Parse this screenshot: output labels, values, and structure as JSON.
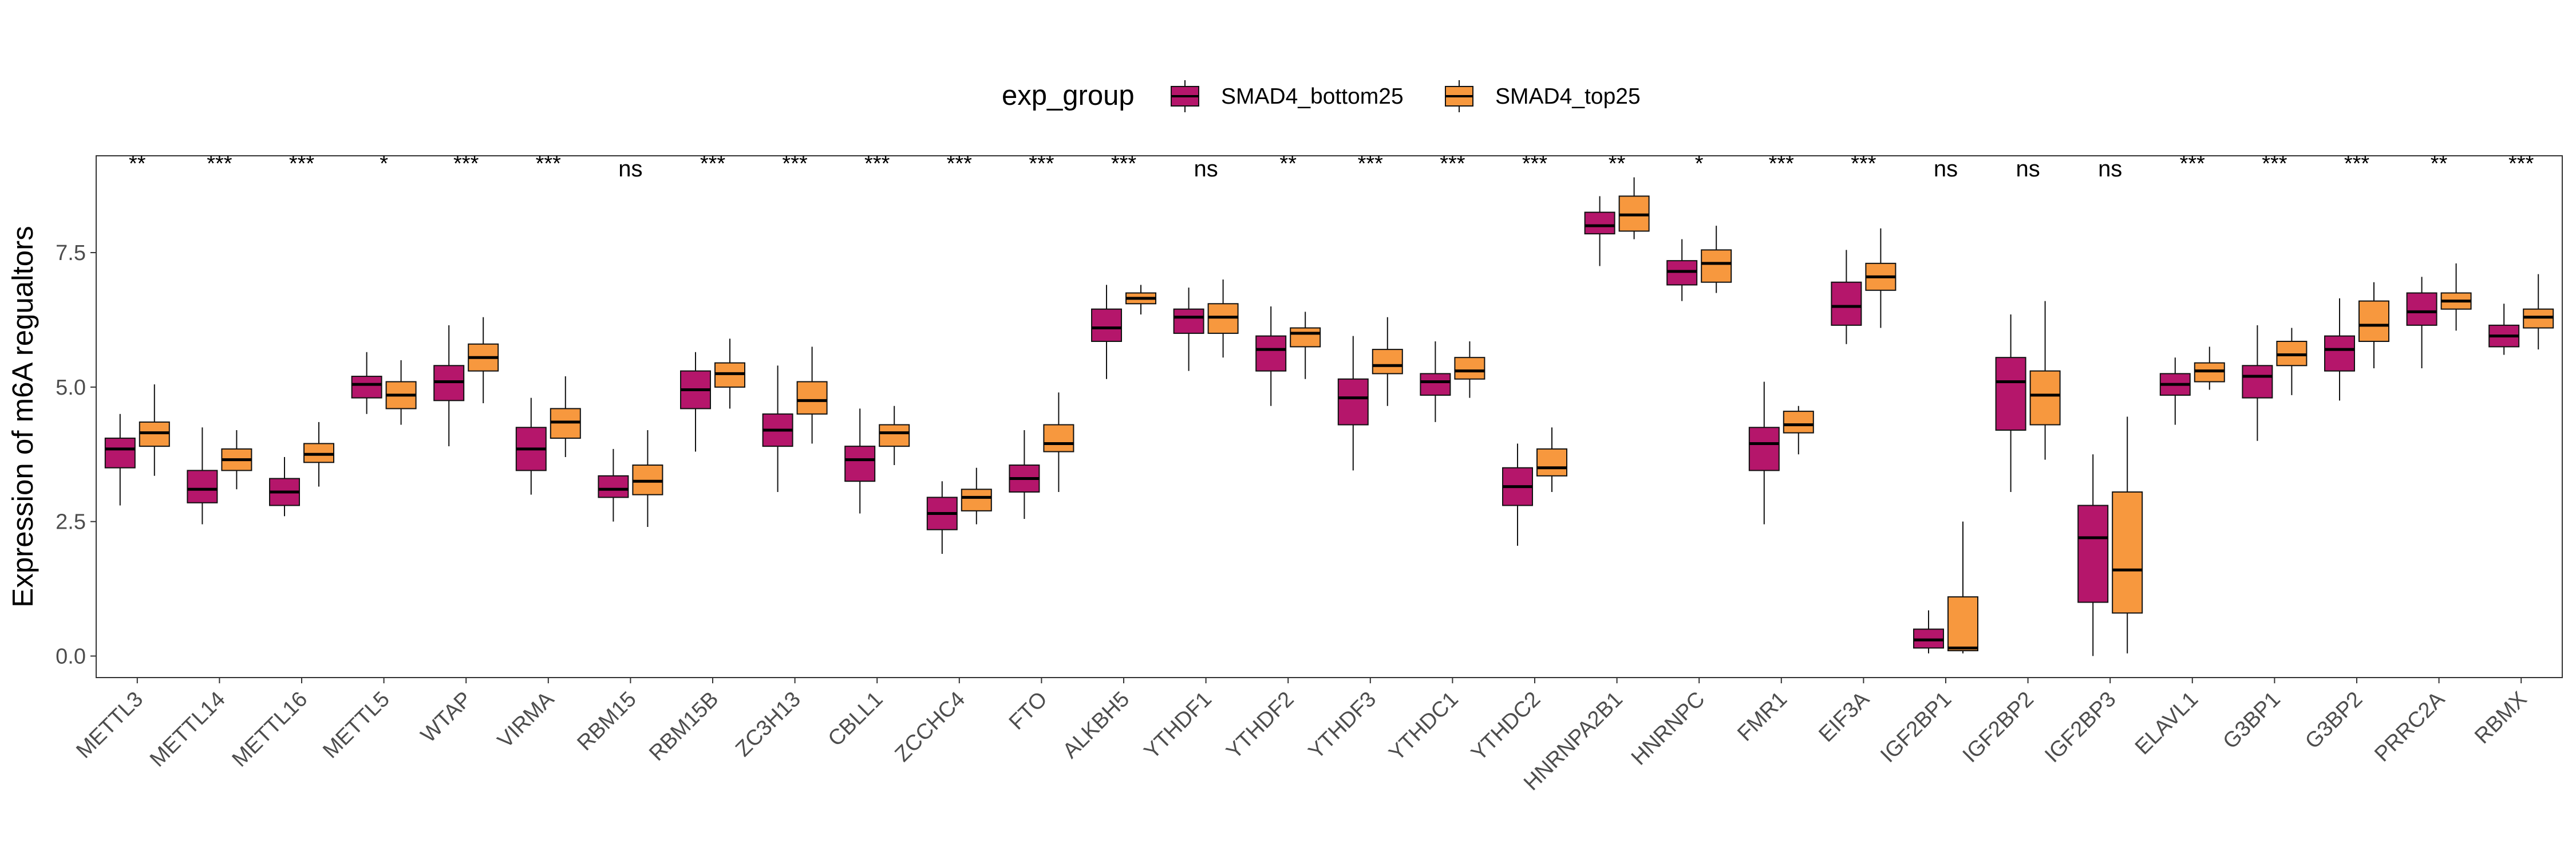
{
  "legend": {
    "title": "exp_group",
    "items": [
      {
        "label": "SMAD4_bottom25",
        "color": "#B5166B"
      },
      {
        "label": "SMAD4_top25",
        "color": "#F7983E"
      }
    ]
  },
  "chart_data": {
    "type": "boxplot",
    "xlabel": "",
    "ylabel": "Expression of m6A regualtors",
    "ylim": [
      -0.4,
      9.3
    ],
    "y_ticks": [
      0.0,
      2.5,
      5.0,
      7.5
    ],
    "y_tick_labels": [
      "0.0",
      "2.5",
      "5.0",
      "7.5"
    ],
    "grid": false,
    "legend_position": "top",
    "categories": [
      "METTL3",
      "METTL14",
      "METTL16",
      "METTL5",
      "WTAP",
      "VIRMA",
      "RBM15",
      "RBM15B",
      "ZC3H13",
      "CBLL1",
      "ZCCHC4",
      "FTO",
      "ALKBH5",
      "YTHDF1",
      "YTHDF2",
      "YTHDF3",
      "YTHDC1",
      "YTHDC2",
      "HNRNPA2B1",
      "HNRNPC",
      "FMR1",
      "EIF3A",
      "IGF2BP1",
      "IGF2BP2",
      "IGF2BP3",
      "ELAVL1",
      "G3BP1",
      "G3BP2",
      "PRRC2A",
      "RBMX"
    ],
    "significance": [
      "**",
      "***",
      "***",
      "*",
      "***",
      "***",
      "ns",
      "***",
      "***",
      "***",
      "***",
      "***",
      "***",
      "ns",
      "**",
      "***",
      "***",
      "***",
      "**",
      "*",
      "***",
      "***",
      "ns",
      "ns",
      "ns",
      "***",
      "***",
      "***",
      "**",
      "***"
    ],
    "series": [
      {
        "name": "SMAD4_bottom25",
        "color": "#B5166B",
        "boxes": [
          {
            "min": 2.8,
            "q1": 3.5,
            "median": 3.85,
            "q3": 4.05,
            "max": 4.5
          },
          {
            "min": 2.45,
            "q1": 2.85,
            "median": 3.1,
            "q3": 3.45,
            "max": 4.25
          },
          {
            "min": 2.6,
            "q1": 2.8,
            "median": 3.05,
            "q3": 3.3,
            "max": 3.7
          },
          {
            "min": 4.5,
            "q1": 4.8,
            "median": 5.05,
            "q3": 5.2,
            "max": 5.65
          },
          {
            "min": 3.9,
            "q1": 4.75,
            "median": 5.1,
            "q3": 5.4,
            "max": 6.15
          },
          {
            "min": 3.0,
            "q1": 3.45,
            "median": 3.85,
            "q3": 4.25,
            "max": 4.8
          },
          {
            "min": 2.5,
            "q1": 2.95,
            "median": 3.1,
            "q3": 3.35,
            "max": 3.85
          },
          {
            "min": 3.8,
            "q1": 4.6,
            "median": 4.95,
            "q3": 5.3,
            "max": 5.65
          },
          {
            "min": 3.05,
            "q1": 3.9,
            "median": 4.2,
            "q3": 4.5,
            "max": 5.4
          },
          {
            "min": 2.65,
            "q1": 3.25,
            "median": 3.65,
            "q3": 3.9,
            "max": 4.6
          },
          {
            "min": 1.9,
            "q1": 2.35,
            "median": 2.65,
            "q3": 2.95,
            "max": 3.25
          },
          {
            "min": 2.55,
            "q1": 3.05,
            "median": 3.3,
            "q3": 3.55,
            "max": 4.2
          },
          {
            "min": 5.15,
            "q1": 5.85,
            "median": 6.1,
            "q3": 6.45,
            "max": 6.9
          },
          {
            "min": 5.3,
            "q1": 6.0,
            "median": 6.3,
            "q3": 6.45,
            "max": 6.85
          },
          {
            "min": 4.65,
            "q1": 5.3,
            "median": 5.7,
            "q3": 5.95,
            "max": 6.5
          },
          {
            "min": 3.45,
            "q1": 4.3,
            "median": 4.8,
            "q3": 5.15,
            "max": 5.95
          },
          {
            "min": 4.35,
            "q1": 4.85,
            "median": 5.1,
            "q3": 5.25,
            "max": 5.85
          },
          {
            "min": 2.05,
            "q1": 2.8,
            "median": 3.15,
            "q3": 3.5,
            "max": 3.95
          },
          {
            "min": 7.25,
            "q1": 7.85,
            "median": 8.0,
            "q3": 8.25,
            "max": 8.55
          },
          {
            "min": 6.6,
            "q1": 6.9,
            "median": 7.15,
            "q3": 7.35,
            "max": 7.75
          },
          {
            "min": 2.45,
            "q1": 3.45,
            "median": 3.95,
            "q3": 4.25,
            "max": 5.1
          },
          {
            "min": 5.8,
            "q1": 6.15,
            "median": 6.5,
            "q3": 6.95,
            "max": 7.55
          },
          {
            "min": 0.05,
            "q1": 0.15,
            "median": 0.3,
            "q3": 0.5,
            "max": 0.85
          },
          {
            "min": 3.05,
            "q1": 4.2,
            "median": 5.1,
            "q3": 5.55,
            "max": 6.35
          },
          {
            "min": 0.0,
            "q1": 1.0,
            "median": 2.2,
            "q3": 2.8,
            "max": 3.75
          },
          {
            "min": 4.3,
            "q1": 4.85,
            "median": 5.05,
            "q3": 5.25,
            "max": 5.55
          },
          {
            "min": 4.0,
            "q1": 4.8,
            "median": 5.2,
            "q3": 5.4,
            "max": 6.15
          },
          {
            "min": 4.75,
            "q1": 5.3,
            "median": 5.7,
            "q3": 5.95,
            "max": 6.65
          },
          {
            "min": 5.35,
            "q1": 6.15,
            "median": 6.4,
            "q3": 6.75,
            "max": 7.05
          },
          {
            "min": 5.6,
            "q1": 5.75,
            "median": 5.95,
            "q3": 6.15,
            "max": 6.55
          }
        ]
      },
      {
        "name": "SMAD4_top25",
        "color": "#F7983E",
        "boxes": [
          {
            "min": 3.35,
            "q1": 3.9,
            "median": 4.15,
            "q3": 4.35,
            "max": 5.05
          },
          {
            "min": 3.1,
            "q1": 3.45,
            "median": 3.65,
            "q3": 3.85,
            "max": 4.2
          },
          {
            "min": 3.15,
            "q1": 3.6,
            "median": 3.75,
            "q3": 3.95,
            "max": 4.35
          },
          {
            "min": 4.3,
            "q1": 4.6,
            "median": 4.85,
            "q3": 5.1,
            "max": 5.5
          },
          {
            "min": 4.7,
            "q1": 5.3,
            "median": 5.55,
            "q3": 5.8,
            "max": 6.3
          },
          {
            "min": 3.7,
            "q1": 4.05,
            "median": 4.35,
            "q3": 4.6,
            "max": 5.2
          },
          {
            "min": 2.4,
            "q1": 3.0,
            "median": 3.25,
            "q3": 3.55,
            "max": 4.2
          },
          {
            "min": 4.6,
            "q1": 5.0,
            "median": 5.25,
            "q3": 5.45,
            "max": 5.9
          },
          {
            "min": 3.95,
            "q1": 4.5,
            "median": 4.75,
            "q3": 5.1,
            "max": 5.75
          },
          {
            "min": 3.55,
            "q1": 3.9,
            "median": 4.15,
            "q3": 4.3,
            "max": 4.65
          },
          {
            "min": 2.45,
            "q1": 2.7,
            "median": 2.95,
            "q3": 3.1,
            "max": 3.5
          },
          {
            "min": 3.05,
            "q1": 3.8,
            "median": 3.95,
            "q3": 4.3,
            "max": 4.9
          },
          {
            "min": 6.35,
            "q1": 6.55,
            "median": 6.65,
            "q3": 6.75,
            "max": 6.9
          },
          {
            "min": 5.55,
            "q1": 6.0,
            "median": 6.3,
            "q3": 6.55,
            "max": 7.0
          },
          {
            "min": 5.15,
            "q1": 5.75,
            "median": 6.0,
            "q3": 6.1,
            "max": 6.4
          },
          {
            "min": 4.65,
            "q1": 5.25,
            "median": 5.4,
            "q3": 5.7,
            "max": 6.3
          },
          {
            "min": 4.8,
            "q1": 5.15,
            "median": 5.3,
            "q3": 5.55,
            "max": 5.85
          },
          {
            "min": 3.05,
            "q1": 3.35,
            "median": 3.5,
            "q3": 3.85,
            "max": 4.25
          },
          {
            "min": 7.75,
            "q1": 7.9,
            "median": 8.2,
            "q3": 8.55,
            "max": 8.9
          },
          {
            "min": 6.75,
            "q1": 6.95,
            "median": 7.3,
            "q3": 7.55,
            "max": 8.0
          },
          {
            "min": 3.75,
            "q1": 4.15,
            "median": 4.3,
            "q3": 4.55,
            "max": 4.65
          },
          {
            "min": 6.1,
            "q1": 6.8,
            "median": 7.05,
            "q3": 7.3,
            "max": 7.95
          },
          {
            "min": 0.05,
            "q1": 0.1,
            "median": 0.15,
            "q3": 1.1,
            "max": 2.5
          },
          {
            "min": 3.65,
            "q1": 4.3,
            "median": 4.85,
            "q3": 5.3,
            "max": 6.6
          },
          {
            "min": 0.05,
            "q1": 0.8,
            "median": 1.6,
            "q3": 3.05,
            "max": 4.45
          },
          {
            "min": 4.95,
            "q1": 5.1,
            "median": 5.3,
            "q3": 5.45,
            "max": 5.75
          },
          {
            "min": 4.85,
            "q1": 5.4,
            "median": 5.6,
            "q3": 5.85,
            "max": 6.1
          },
          {
            "min": 5.35,
            "q1": 5.85,
            "median": 6.15,
            "q3": 6.6,
            "max": 6.95
          },
          {
            "min": 6.05,
            "q1": 6.45,
            "median": 6.6,
            "q3": 6.75,
            "max": 7.3
          },
          {
            "min": 5.7,
            "q1": 6.1,
            "median": 6.3,
            "q3": 6.45,
            "max": 7.1
          }
        ]
      }
    ]
  }
}
